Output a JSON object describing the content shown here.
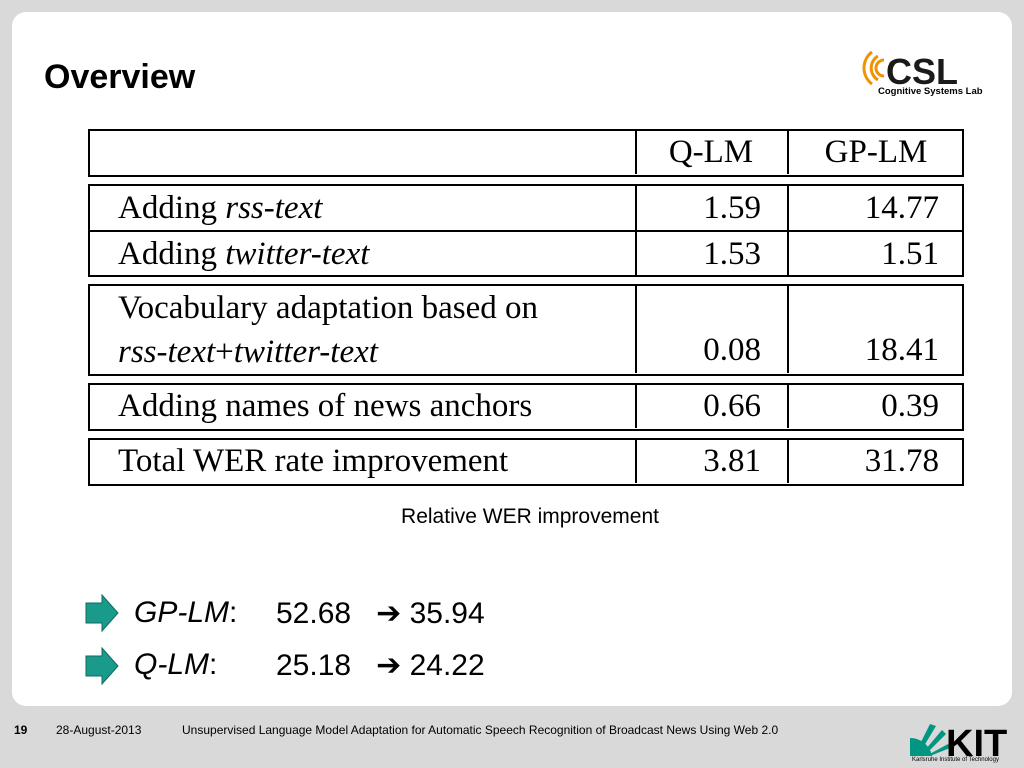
{
  "slide": {
    "title": "Overview",
    "logo_top": {
      "text": "CSL",
      "subtitle": "Cognitive Systems Lab"
    },
    "table": {
      "headers": [
        "",
        "Q-LM",
        "GP-LM"
      ],
      "rows": [
        {
          "label_plain": "Adding ",
          "label_italic": "rss-text",
          "q_lm": "1.59",
          "gp_lm": "14.77"
        },
        {
          "label_plain": "Adding ",
          "label_italic": "twitter-text",
          "q_lm": "1.53",
          "gp_lm": "1.51"
        },
        {
          "label_line1": "Vocabulary adaptation based on",
          "label_line2_italic1": "rss-text",
          "label_line2_plus": "+",
          "label_line2_italic2": "twitter-text",
          "q_lm": "0.08",
          "gp_lm": "18.41"
        },
        {
          "label": "Adding names of news anchors",
          "q_lm": "0.66",
          "gp_lm": "0.39"
        },
        {
          "label": "Total WER rate improvement",
          "q_lm": "3.81",
          "gp_lm": "31.78"
        }
      ]
    },
    "caption": "Relative WER improvement",
    "bullets": [
      {
        "label": "GP-LM",
        "colon": ":",
        "from": "52.68",
        "arrow": "➔",
        "to": "35.94"
      },
      {
        "label": "Q-LM",
        "colon": ":",
        "from": "25.18",
        "arrow": "➔",
        "to": "24.22"
      }
    ]
  },
  "footer": {
    "page": "19",
    "date": "28-August-2013",
    "title": "Unsupervised Language Model Adaptation for Automatic Speech Recognition of Broadcast News Using Web 2.0",
    "logo": {
      "text": "KIT",
      "subtitle": "Karlsruhe Institute of Technology"
    }
  },
  "colors": {
    "bullet": "#1a9a8a",
    "background": "#d9d9d9",
    "slide": "#ffffff",
    "logo_orange": "#f39200"
  }
}
